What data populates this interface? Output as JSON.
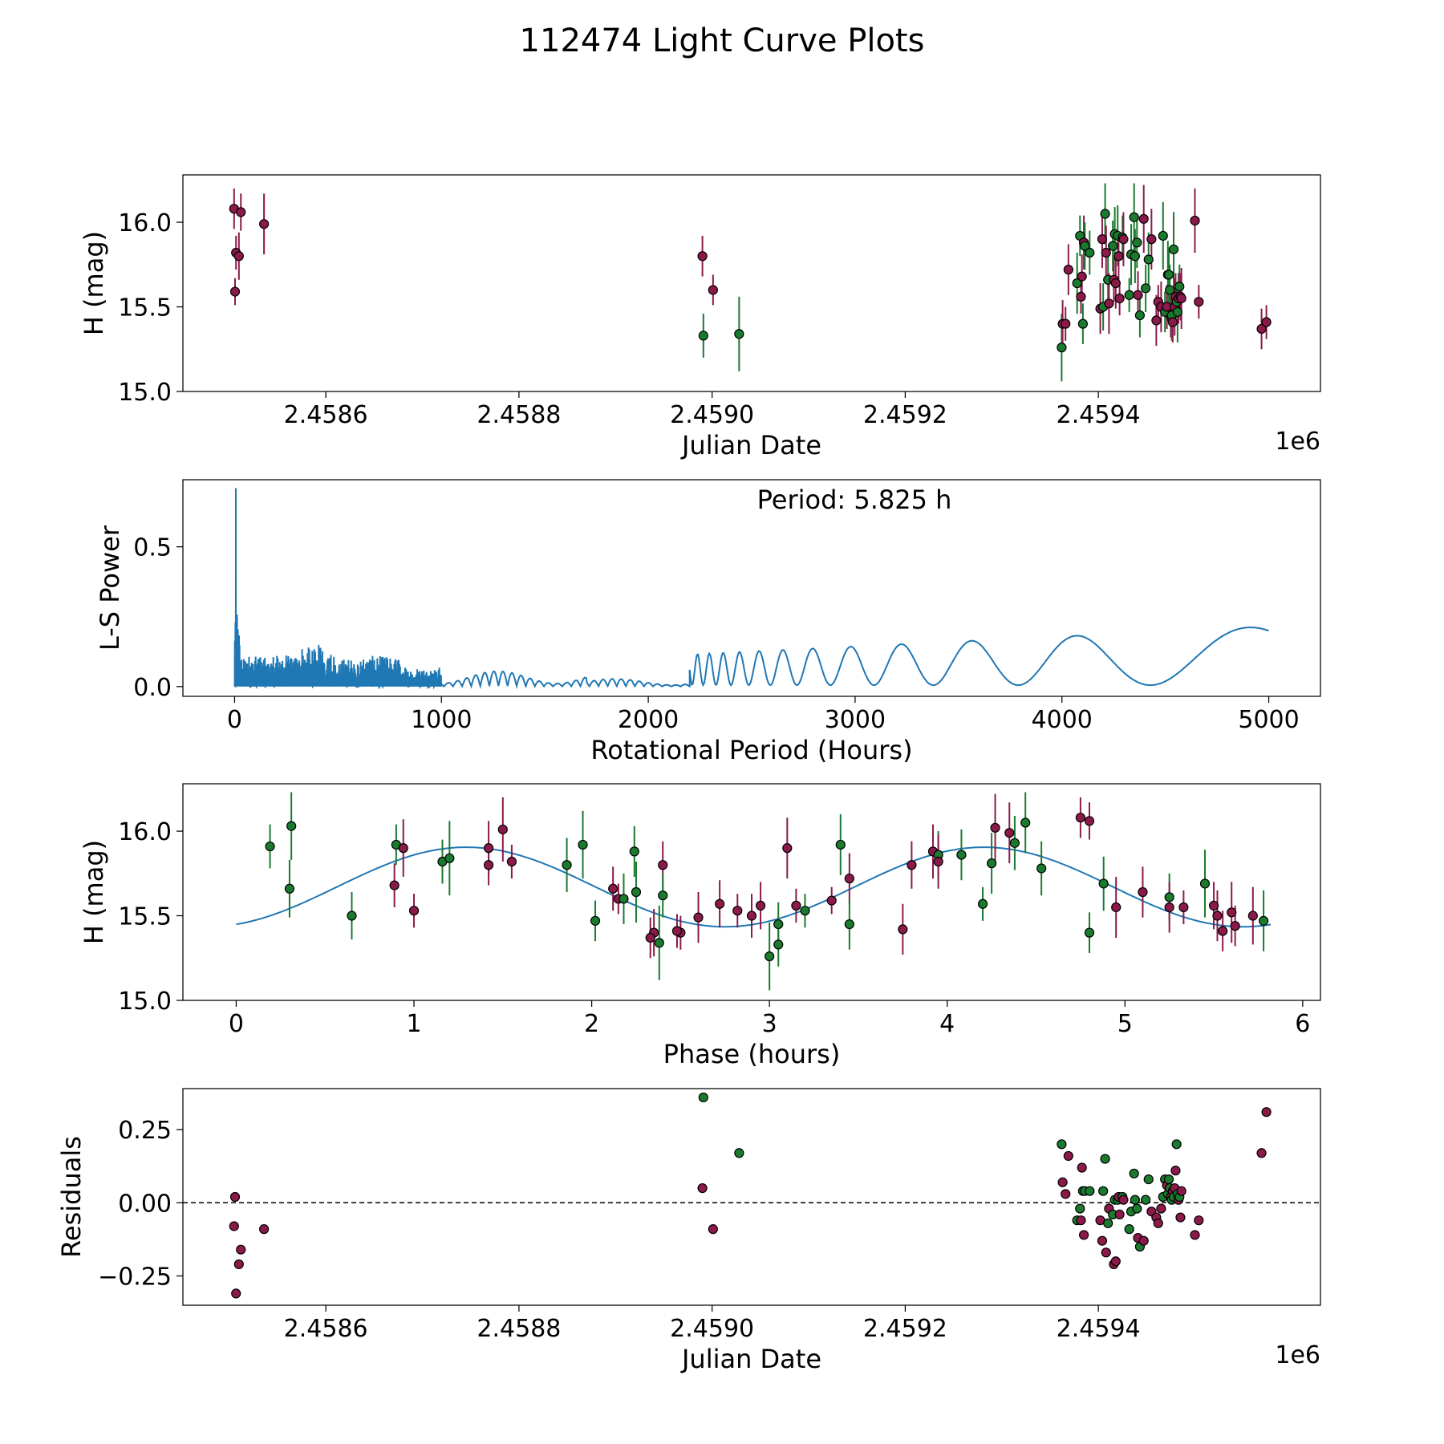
{
  "colors": {
    "series_a": "#1a7a2e",
    "series_b": "#8b1a4a",
    "periodogram": "#1f77b4",
    "fit": "#1f77b4"
  },
  "chart_data": {
    "type": "multi-panel",
    "title": "112474 Light Curve Plots",
    "series_names": [
      "series_a",
      "series_b"
    ],
    "panels": [
      {
        "id": "lightcurve",
        "type": "scatter",
        "xlabel": "Julian Date",
        "ylabel": "H (mag)",
        "xlim": [
          2458452,
          2459630
        ],
        "ylim": [
          15.0,
          16.28
        ],
        "x_offset_label": "1e6",
        "xticks": [
          2458600,
          2458800,
          2459000,
          2459200,
          2459400
        ],
        "xtick_labels": [
          "2.4586",
          "2.4588",
          "2.4590",
          "2.4592",
          "2.4594"
        ],
        "yticks": [
          15.0,
          15.5,
          16.0
        ],
        "ytick_labels": [
          "15.0",
          "15.5",
          "16.0"
        ]
      },
      {
        "id": "periodogram",
        "type": "line",
        "xlabel": "Rotational Period (Hours)",
        "ylabel": "L-S Power",
        "xlim": [
          -250,
          5250
        ],
        "ylim": [
          -0.035,
          0.74
        ],
        "xticks": [
          0,
          1000,
          2000,
          3000,
          4000,
          5000
        ],
        "xtick_labels": [
          "0",
          "1000",
          "2000",
          "3000",
          "4000",
          "5000"
        ],
        "yticks": [
          0.0,
          0.5
        ],
        "ytick_labels": [
          "0.0",
          "0.5"
        ],
        "annotation": "Period: 5.825 h",
        "peak": {
          "period_hours": 5.825,
          "power": 0.71
        }
      },
      {
        "id": "phased",
        "type": "scatter",
        "xlabel": "Phase (hours)",
        "ylabel": "H (mag)",
        "xlim": [
          -0.3,
          6.1
        ],
        "ylim": [
          15.0,
          16.28
        ],
        "xticks": [
          0,
          1,
          2,
          3,
          4,
          5,
          6
        ],
        "xtick_labels": [
          "0",
          "1",
          "2",
          "3",
          "4",
          "5",
          "6"
        ],
        "yticks": [
          15.0,
          15.5,
          16.0
        ],
        "ytick_labels": [
          "15.0",
          "15.5",
          "16.0"
        ],
        "fit": {
          "mean": 15.67,
          "amplitude": 0.235,
          "period_hours": 2.9125,
          "phase_of_min_hours": 2.75
        }
      },
      {
        "id": "residuals",
        "type": "scatter",
        "xlabel": "Julian Date",
        "ylabel": "Residuals",
        "xlim": [
          2458452,
          2459630
        ],
        "ylim": [
          -0.35,
          0.39
        ],
        "x_offset_label": "1e6",
        "xticks": [
          2458600,
          2458800,
          2459000,
          2459200,
          2459400
        ],
        "xtick_labels": [
          "2.4586",
          "2.4588",
          "2.4590",
          "2.4592",
          "2.4594"
        ],
        "yticks": [
          -0.25,
          0.0,
          0.25
        ],
        "ytick_labels": [
          "−0.25",
          "0.00",
          "0.25"
        ],
        "reference_line": 0.0
      }
    ],
    "observations": [
      {
        "jd": 2458505,
        "mag": 16.08,
        "err": 0.12,
        "series": "series_b",
        "phase": 4.75,
        "resid": -0.08
      },
      {
        "jd": 2458506,
        "mag": 15.59,
        "err": 0.08,
        "series": "series_b",
        "phase": 3.35,
        "resid": 0.02
      },
      {
        "jd": 2458507,
        "mag": 15.82,
        "err": 0.1,
        "series": "series_b",
        "phase": 1.55,
        "resid": -0.31
      },
      {
        "jd": 2458510,
        "mag": 15.8,
        "err": 0.14,
        "series": "series_b",
        "phase": 2.4,
        "resid": -0.21
      },
      {
        "jd": 2458512,
        "mag": 16.06,
        "err": 0.11,
        "series": "series_b",
        "phase": 4.8,
        "resid": -0.16
      },
      {
        "jd": 2458536,
        "mag": 15.99,
        "err": 0.18,
        "series": "series_b",
        "phase": 4.35,
        "resid": -0.09
      },
      {
        "jd": 2458990,
        "mag": 15.8,
        "err": 0.12,
        "series": "series_b",
        "phase": 1.42,
        "resid": 0.05
      },
      {
        "jd": 2458991,
        "mag": 15.33,
        "err": 0.13,
        "series": "series_a",
        "phase": 3.05,
        "resid": 0.36
      },
      {
        "jd": 2459001,
        "mag": 15.6,
        "err": 0.09,
        "series": "series_b",
        "phase": 2.15,
        "resid": -0.09
      },
      {
        "jd": 2459028,
        "mag": 15.34,
        "err": 0.22,
        "series": "series_a",
        "phase": 2.38,
        "resid": 0.17
      },
      {
        "jd": 2459362,
        "mag": 15.26,
        "err": 0.2,
        "series": "series_a",
        "phase": 3.0,
        "resid": 0.2
      },
      {
        "jd": 2459363,
        "mag": 15.4,
        "err": 0.14,
        "series": "series_b",
        "phase": 2.35,
        "resid": 0.07
      },
      {
        "jd": 2459366,
        "mag": 15.4,
        "err": 0.1,
        "series": "series_b",
        "phase": 2.5,
        "resid": 0.03
      },
      {
        "jd": 2459369,
        "mag": 15.72,
        "err": 0.15,
        "series": "series_b",
        "phase": 3.45,
        "resid": 0.16
      },
      {
        "jd": 2459378,
        "mag": 15.64,
        "err": 0.18,
        "series": "series_a",
        "phase": 2.25,
        "resid": -0.06
      },
      {
        "jd": 2459381,
        "mag": 15.92,
        "err": 0.12,
        "series": "series_a",
        "phase": 0.9,
        "resid": -0.02
      },
      {
        "jd": 2459382,
        "mag": 15.56,
        "err": 0.1,
        "series": "series_b",
        "phase": 3.15,
        "resid": -0.06
      },
      {
        "jd": 2459383,
        "mag": 15.68,
        "err": 0.13,
        "series": "series_b",
        "phase": 0.89,
        "resid": 0.12
      },
      {
        "jd": 2459384,
        "mag": 15.4,
        "err": 0.12,
        "series": "series_a",
        "phase": 4.8,
        "resid": 0.04
      },
      {
        "jd": 2459385,
        "mag": 15.88,
        "err": 0.16,
        "series": "series_b",
        "phase": 3.92,
        "resid": -0.11
      },
      {
        "jd": 2459386,
        "mag": 15.86,
        "err": 0.14,
        "series": "series_a",
        "phase": 3.95,
        "resid": 0.04
      },
      {
        "jd": 2459391,
        "mag": 15.82,
        "err": 0.13,
        "series": "series_a",
        "phase": 1.16,
        "resid": 0.04
      },
      {
        "jd": 2459402,
        "mag": 15.49,
        "err": 0.15,
        "series": "series_b",
        "phase": 2.6,
        "resid": -0.06
      },
      {
        "jd": 2459404,
        "mag": 15.9,
        "err": 0.17,
        "series": "series_b",
        "phase": 0.94,
        "resid": -0.13
      },
      {
        "jd": 2459405,
        "mag": 15.5,
        "err": 0.14,
        "series": "series_a",
        "phase": 0.65,
        "resid": 0.04
      },
      {
        "jd": 2459407,
        "mag": 16.05,
        "err": 0.18,
        "series": "series_a",
        "phase": 4.44,
        "resid": 0.15
      },
      {
        "jd": 2459408,
        "mag": 15.82,
        "err": 0.16,
        "series": "series_b",
        "phase": 3.95,
        "resid": -0.17
      },
      {
        "jd": 2459410,
        "mag": 15.66,
        "err": 0.17,
        "series": "series_a",
        "phase": 0.3,
        "resid": -0.07
      },
      {
        "jd": 2459411,
        "mag": 15.52,
        "err": 0.18,
        "series": "series_b",
        "phase": 5.6,
        "resid": -0.02
      },
      {
        "jd": 2459415,
        "mag": 15.86,
        "err": 0.15,
        "series": "series_a",
        "phase": 4.08,
        "resid": -0.04
      },
      {
        "jd": 2459416,
        "mag": 15.66,
        "err": 0.13,
        "series": "series_b",
        "phase": 2.12,
        "resid": -0.21
      },
      {
        "jd": 2459417,
        "mag": 15.93,
        "err": 0.16,
        "series": "series_a",
        "phase": 4.38,
        "resid": 0.01
      },
      {
        "jd": 2459418,
        "mag": 15.64,
        "err": 0.15,
        "series": "series_b",
        "phase": 5.1,
        "resid": -0.2
      },
      {
        "jd": 2459420,
        "mag": 15.92,
        "err": 0.18,
        "series": "series_a",
        "phase": 3.4,
        "resid": 0.01
      },
      {
        "jd": 2459421,
        "mag": 15.8,
        "err": 0.14,
        "series": "series_b",
        "phase": 3.8,
        "resid": 0.02
      },
      {
        "jd": 2459422,
        "mag": 15.55,
        "err": 0.1,
        "series": "series_b",
        "phase": 5.33,
        "resid": -0.04
      },
      {
        "jd": 2459425,
        "mag": 15.91,
        "err": 0.13,
        "series": "series_a",
        "phase": 0.19,
        "resid": 0.02
      },
      {
        "jd": 2459426,
        "mag": 15.9,
        "err": 0.16,
        "series": "series_b",
        "phase": 1.42,
        "resid": 0.01
      },
      {
        "jd": 2459432,
        "mag": 15.57,
        "err": 0.1,
        "series": "series_a",
        "phase": 4.2,
        "resid": -0.09
      },
      {
        "jd": 2459434,
        "mag": 15.81,
        "err": 0.18,
        "series": "series_a",
        "phase": 4.25,
        "resid": -0.03
      },
      {
        "jd": 2459437,
        "mag": 16.03,
        "err": 0.2,
        "series": "series_a",
        "phase": 0.31,
        "resid": 0.1
      },
      {
        "jd": 2459438,
        "mag": 15.8,
        "err": 0.16,
        "series": "series_a",
        "phase": 1.86,
        "resid": 0.01
      },
      {
        "jd": 2459440,
        "mag": 15.88,
        "err": 0.15,
        "series": "series_a",
        "phase": 2.24,
        "resid": -0.02
      },
      {
        "jd": 2459441,
        "mag": 15.57,
        "err": 0.14,
        "series": "series_b",
        "phase": 2.72,
        "resid": -0.12
      },
      {
        "jd": 2459443,
        "mag": 15.45,
        "err": 0.13,
        "series": "series_a",
        "phase": 3.05,
        "resid": -0.15
      },
      {
        "jd": 2459447,
        "mag": 16.02,
        "err": 0.2,
        "series": "series_b",
        "phase": 4.27,
        "resid": -0.13
      },
      {
        "jd": 2459449,
        "mag": 15.61,
        "err": 0.14,
        "series": "series_a",
        "phase": 5.25,
        "resid": 0.01
      },
      {
        "jd": 2459452,
        "mag": 15.78,
        "err": 0.16,
        "series": "series_a",
        "phase": 4.53,
        "resid": 0.08
      },
      {
        "jd": 2459455,
        "mag": 15.9,
        "err": 0.18,
        "series": "series_b",
        "phase": 3.1,
        "resid": -0.03
      },
      {
        "jd": 2459460,
        "mag": 15.42,
        "err": 0.15,
        "series": "series_b",
        "phase": 3.75,
        "resid": -0.05
      },
      {
        "jd": 2459462,
        "mag": 15.53,
        "err": 0.1,
        "series": "series_b",
        "phase": 2.82,
        "resid": -0.07
      },
      {
        "jd": 2459465,
        "mag": 15.5,
        "err": 0.15,
        "series": "series_b",
        "phase": 5.52,
        "resid": -0.02
      },
      {
        "jd": 2459467,
        "mag": 15.92,
        "err": 0.2,
        "series": "series_a",
        "phase": 1.95,
        "resid": 0.02
      },
      {
        "jd": 2459469,
        "mag": 15.47,
        "err": 0.12,
        "series": "series_a",
        "phase": 2.02,
        "resid": 0.08
      },
      {
        "jd": 2459471,
        "mag": 15.5,
        "err": 0.13,
        "series": "series_b",
        "phase": 2.9,
        "resid": 0.06
      },
      {
        "jd": 2459472,
        "mag": 15.69,
        "err": 0.2,
        "series": "series_a",
        "phase": 5.45,
        "resid": 0.03
      },
      {
        "jd": 2459473,
        "mag": 15.69,
        "err": 0.16,
        "series": "series_a",
        "phase": 4.88,
        "resid": 0.08
      },
      {
        "jd": 2459474,
        "mag": 15.6,
        "err": 0.15,
        "series": "series_a",
        "phase": 2.18,
        "resid": 0.05
      },
      {
        "jd": 2459475,
        "mag": 15.44,
        "err": 0.12,
        "series": "series_b",
        "phase": 5.62,
        "resid": 0.02
      },
      {
        "jd": 2459476,
        "mag": 15.45,
        "err": 0.15,
        "series": "series_a",
        "phase": 3.45,
        "resid": 0.01
      },
      {
        "jd": 2459477,
        "mag": 15.41,
        "err": 0.12,
        "series": "series_b",
        "phase": 5.55,
        "resid": 0.04
      },
      {
        "jd": 2459478,
        "mag": 15.84,
        "err": 0.22,
        "series": "series_a",
        "phase": 1.2,
        "resid": 0.02
      },
      {
        "jd": 2459479,
        "mag": 15.5,
        "err": 0.17,
        "series": "series_b",
        "phase": 5.72,
        "resid": 0.05
      },
      {
        "jd": 2459480,
        "mag": 15.56,
        "err": 0.14,
        "series": "series_b",
        "phase": 2.95,
        "resid": 0.11
      },
      {
        "jd": 2459481,
        "mag": 15.53,
        "err": 0.1,
        "series": "series_a",
        "phase": 3.2,
        "resid": 0.2
      },
      {
        "jd": 2459482,
        "mag": 15.47,
        "err": 0.18,
        "series": "series_a",
        "phase": 5.78,
        "resid": 0.03
      },
      {
        "jd": 2459483,
        "mag": 15.55,
        "err": 0.15,
        "series": "series_b",
        "phase": 5.25,
        "resid": 0.01
      },
      {
        "jd": 2459484,
        "mag": 15.62,
        "err": 0.13,
        "series": "series_a",
        "phase": 2.4,
        "resid": 0.02
      },
      {
        "jd": 2459485,
        "mag": 15.56,
        "err": 0.14,
        "series": "series_b",
        "phase": 5.5,
        "resid": -0.05
      },
      {
        "jd": 2459486,
        "mag": 15.55,
        "err": 0.18,
        "series": "series_b",
        "phase": 4.95,
        "resid": 0.04
      },
      {
        "jd": 2459500,
        "mag": 16.01,
        "err": 0.19,
        "series": "series_b",
        "phase": 1.5,
        "resid": -0.11
      },
      {
        "jd": 2459504,
        "mag": 15.53,
        "err": 0.1,
        "series": "series_b",
        "phase": 1.0,
        "resid": -0.06
      },
      {
        "jd": 2459569,
        "mag": 15.37,
        "err": 0.12,
        "series": "series_b",
        "phase": 2.33,
        "resid": 0.17
      },
      {
        "jd": 2459574,
        "mag": 15.41,
        "err": 0.1,
        "series": "series_b",
        "phase": 2.48,
        "resid": 0.31
      }
    ]
  }
}
